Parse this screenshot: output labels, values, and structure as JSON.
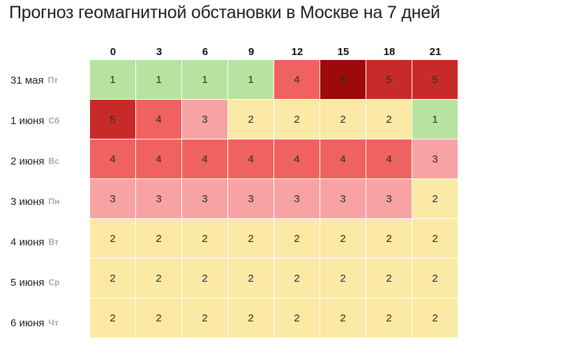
{
  "title": "Прогноз геомагнитной обстановки в Москве на 7 дней",
  "chart_data": {
    "type": "heatmap",
    "title": "Прогноз геомагнитной обстановки в Москве на 7 дней",
    "columns": [
      "0",
      "3",
      "6",
      "9",
      "12",
      "15",
      "18",
      "21"
    ],
    "rows": [
      {
        "date": "31 мая",
        "dow": "Пт",
        "values": [
          1,
          1,
          1,
          1,
          4,
          6,
          5,
          5
        ]
      },
      {
        "date": "1 июня",
        "dow": "Сб",
        "values": [
          5,
          4,
          3,
          2,
          2,
          2,
          2,
          1
        ]
      },
      {
        "date": "2 июня",
        "dow": "Вс",
        "values": [
          4,
          4,
          4,
          4,
          4,
          4,
          4,
          3
        ]
      },
      {
        "date": "3 июня",
        "dow": "Пн",
        "values": [
          3,
          3,
          3,
          3,
          3,
          3,
          3,
          2
        ]
      },
      {
        "date": "4 июня",
        "dow": "Вт",
        "values": [
          2,
          2,
          2,
          2,
          2,
          2,
          2,
          2
        ]
      },
      {
        "date": "5 июня",
        "dow": "Ср",
        "values": [
          2,
          2,
          2,
          2,
          2,
          2,
          2,
          2
        ]
      },
      {
        "date": "6 июня",
        "dow": "Чт",
        "values": [
          2,
          2,
          2,
          2,
          2,
          2,
          2,
          2
        ]
      }
    ],
    "color_scale": {
      "1": "#b7e3a0",
      "2": "#fbe9a5",
      "3": "#f8a3a3",
      "4": "#f06262",
      "5": "#c82a2a",
      "6": "#9e0a0a"
    },
    "legend": "none",
    "grid": false
  }
}
